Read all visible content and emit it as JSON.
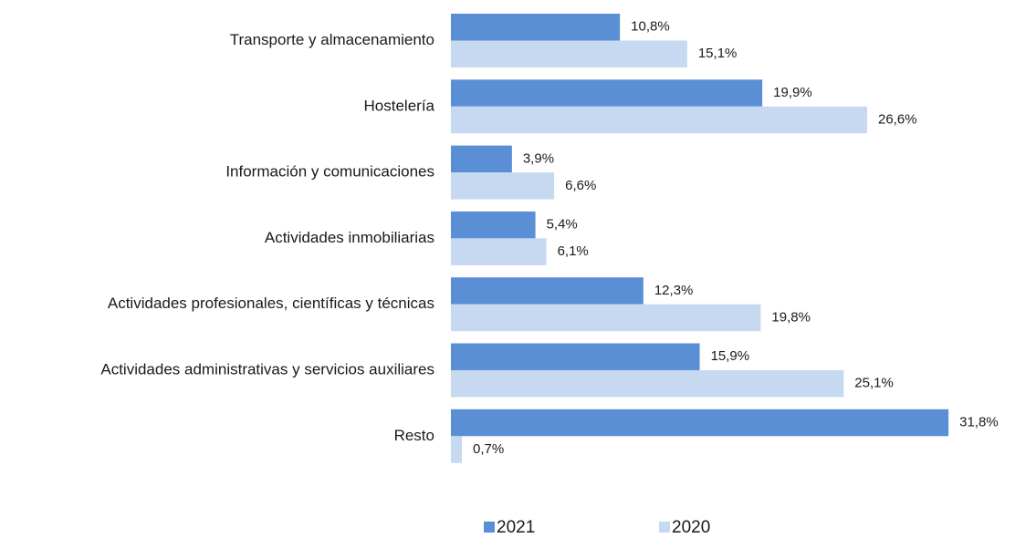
{
  "chart_data": {
    "type": "bar",
    "orientation": "horizontal",
    "categories": [
      "Transporte y almacenamiento",
      "Hostelería",
      "Información y comunicaciones",
      "Actividades inmobiliarias",
      "Actividades profesionales, científicas y técnicas",
      "Actividades administrativas y servicios auxiliares",
      "Resto"
    ],
    "series": [
      {
        "name": "2021",
        "color": "#5a8fd6",
        "values": [
          10.8,
          19.9,
          3.9,
          5.4,
          12.3,
          15.9,
          31.8
        ],
        "value_labels": [
          "10,8%",
          "19,9%",
          "3,9%",
          "5,4%",
          "12,3%",
          "15,9%",
          "31,8%"
        ]
      },
      {
        "name": "2020",
        "color": "#c6d9f1",
        "values": [
          15.1,
          26.6,
          6.6,
          6.1,
          19.8,
          25.1,
          0.7
        ],
        "value_labels": [
          "15,1%",
          "26,6%",
          "6,6%",
          "6,1%",
          "19,8%",
          "25,1%",
          "0,7%"
        ]
      }
    ],
    "xlim": [
      0,
      35
    ],
    "legend": "bottom"
  }
}
